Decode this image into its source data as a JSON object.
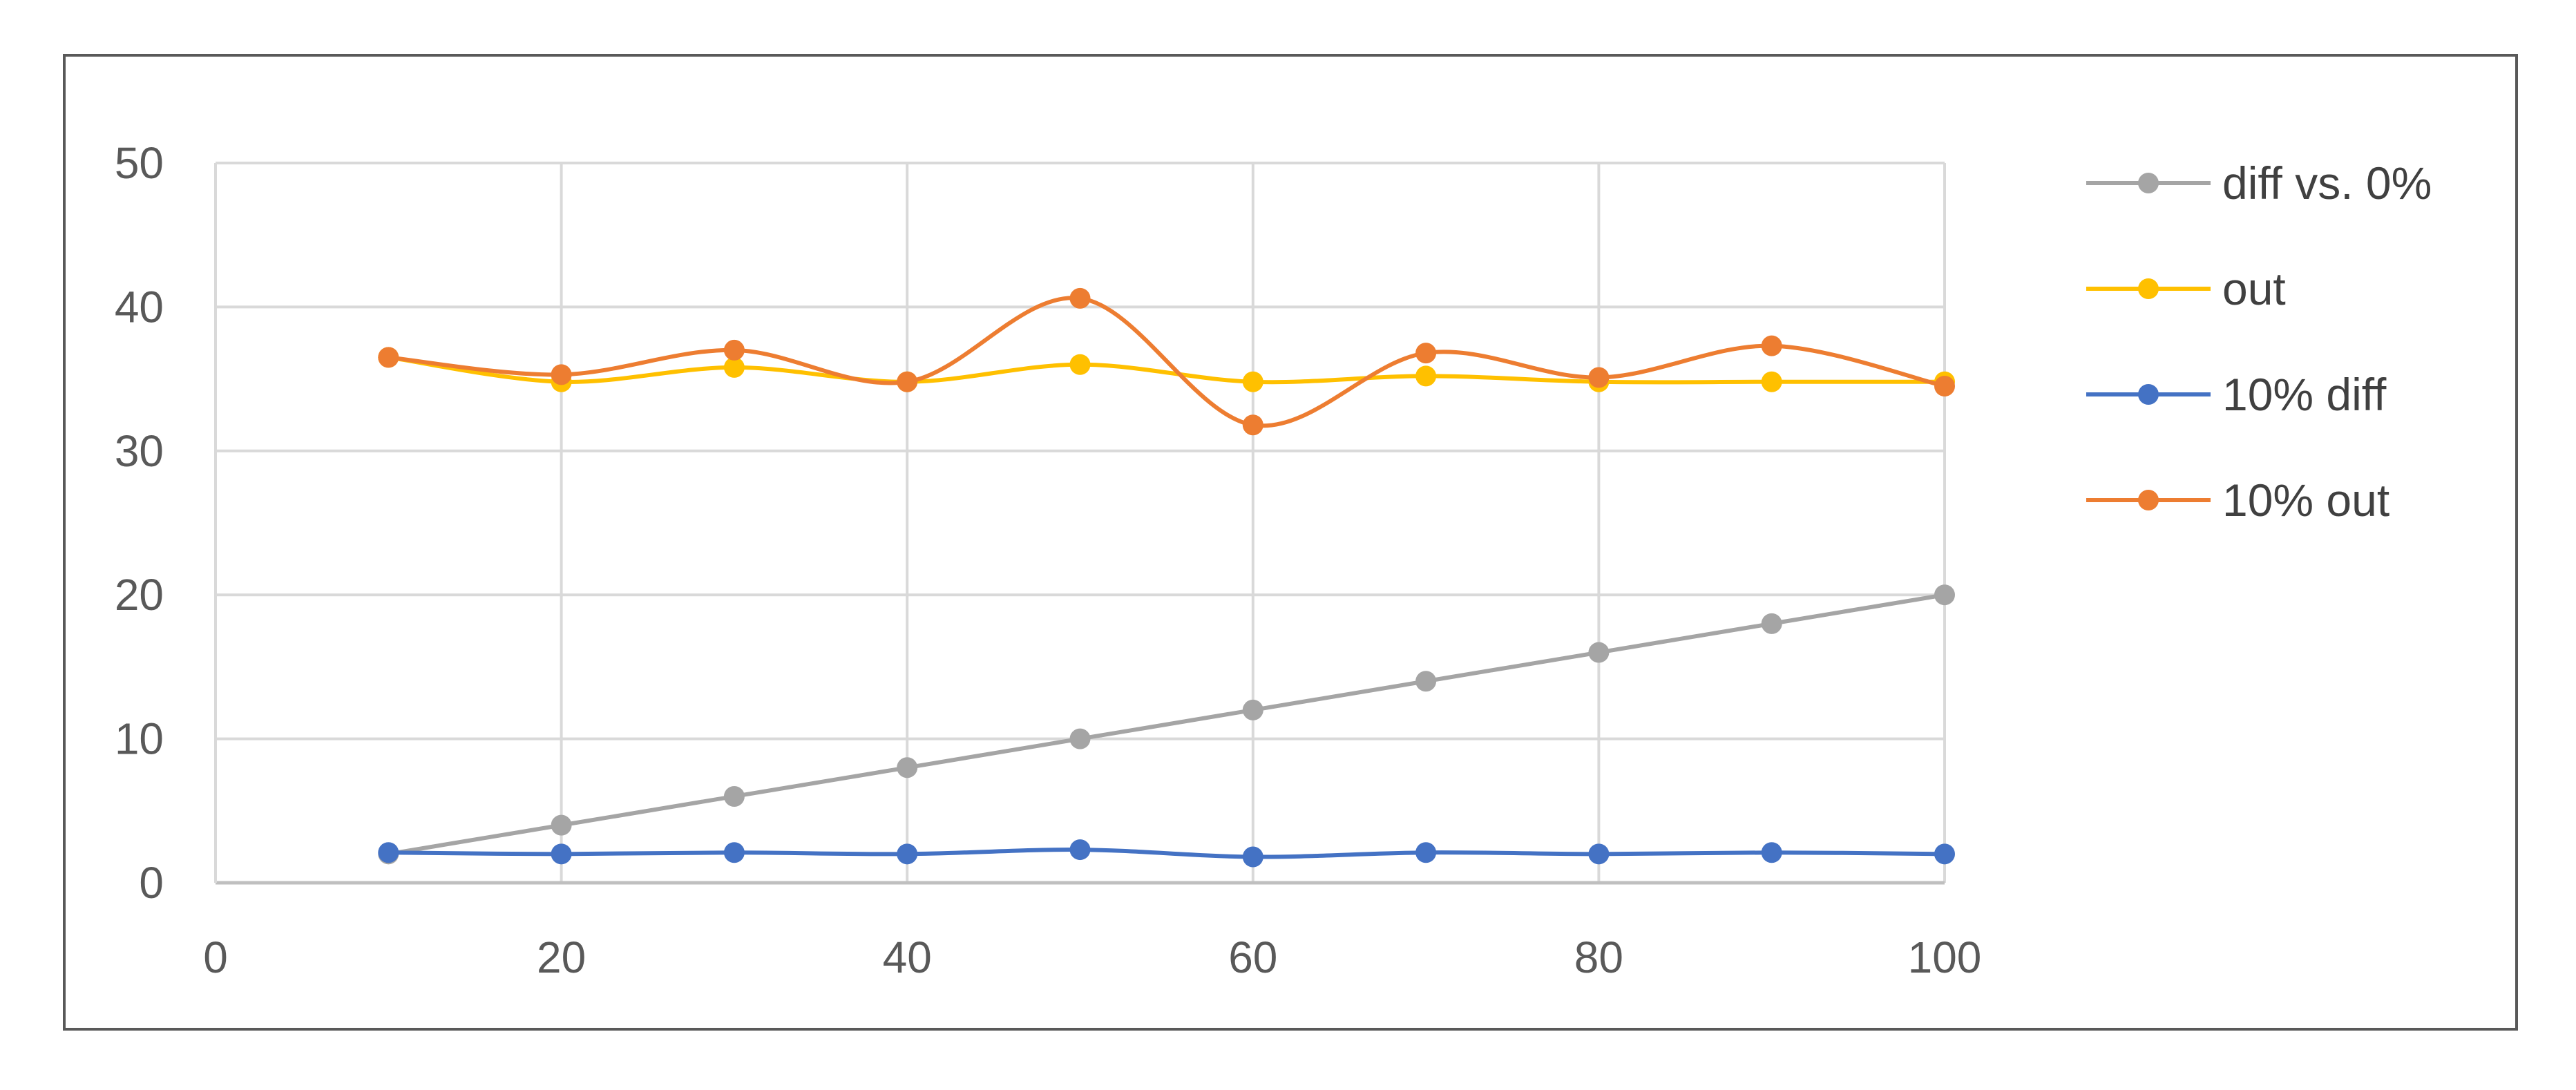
{
  "chart_data": {
    "type": "scatter",
    "subtype": "smooth-lines-with-markers",
    "title": "",
    "xlabel": "",
    "ylabel": "",
    "xlim": [
      0,
      100
    ],
    "ylim": [
      0,
      50
    ],
    "xticks": [
      0,
      20,
      40,
      60,
      80,
      100
    ],
    "yticks": [
      0,
      10,
      20,
      30,
      40,
      50
    ],
    "grid": true,
    "legend_position": "right",
    "x": [
      10,
      20,
      30,
      40,
      50,
      60,
      70,
      80,
      90,
      100
    ],
    "series": [
      {
        "name": "diff vs. 0%",
        "color": "#a5a5a5",
        "values": [
          2,
          4,
          6,
          8,
          10,
          12,
          14,
          16,
          18,
          20
        ]
      },
      {
        "name": "out",
        "color": "#ffc000",
        "values": [
          36.5,
          34.8,
          35.8,
          34.8,
          36,
          34.8,
          35.2,
          34.8,
          34.8,
          34.8
        ]
      },
      {
        "name": "10% diff",
        "color": "#4472c4",
        "values": [
          2.1,
          2.0,
          2.1,
          2.0,
          2.3,
          1.8,
          2.1,
          2.0,
          2.1,
          2.0
        ]
      },
      {
        "name": "10% out",
        "color": "#ed7d31",
        "values": [
          36.5,
          35.3,
          37,
          34.8,
          40.6,
          31.8,
          36.8,
          35.1,
          37.3,
          34.5
        ]
      }
    ]
  }
}
